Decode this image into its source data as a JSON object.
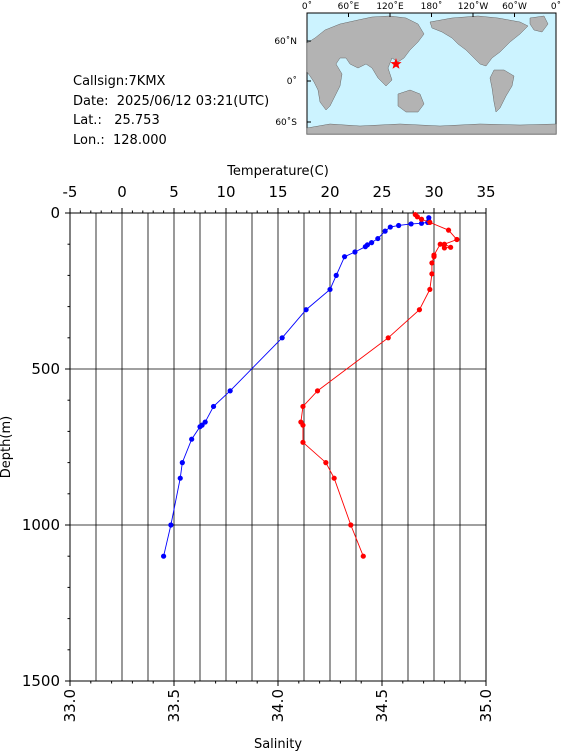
{
  "station": {
    "callsign_label": "Callsign:",
    "callsign": "7KMX",
    "date_label": "Date:",
    "date": "2025/06/12 03:21(UTC)",
    "lat_label": "Lat.:",
    "lat": "25.753",
    "lon_label": "Lon.:",
    "lon": "128.000"
  },
  "map": {
    "top_ticks": [
      "0˚",
      "60˚E",
      "120˚E",
      "180˚",
      "120˚W",
      "60˚W",
      "0˚"
    ],
    "left_ticks": [
      "60˚N",
      "0˚",
      "60˚S"
    ],
    "ocean_color": "#ccf3ff",
    "land_color": "#b3b3b3",
    "marker_color": "#ff0000",
    "marker": "star-icon"
  },
  "chart_data": {
    "type": "line",
    "title": "",
    "ylabel": "Depth(m)",
    "ylim": [
      1500,
      0
    ],
    "yticks": [
      "0",
      "500",
      "1000",
      "1500"
    ],
    "grid": true,
    "x_top": {
      "label": "Temperature(C)",
      "lim": [
        -5,
        35
      ],
      "ticks": [
        "-5",
        "0",
        "5",
        "10",
        "15",
        "20",
        "25",
        "30",
        "35"
      ]
    },
    "x_bottom": {
      "label": "Salinity",
      "lim": [
        33.0,
        35.0
      ],
      "ticks": [
        "33.0",
        "33.5",
        "34.0",
        "34.5",
        "35.0"
      ]
    },
    "series": [
      {
        "axis": "temperature",
        "color": "#0000ff",
        "points": [
          [
            29.5,
            15
          ],
          [
            29.5,
            25
          ],
          [
            29.4,
            30
          ],
          [
            28.8,
            33
          ],
          [
            27.8,
            35
          ],
          [
            26.6,
            40
          ],
          [
            25.8,
            45
          ],
          [
            25.3,
            58
          ],
          [
            24.6,
            82
          ],
          [
            24.0,
            95
          ],
          [
            23.6,
            102
          ],
          [
            23.4,
            108
          ],
          [
            22.4,
            125
          ],
          [
            21.4,
            140
          ],
          [
            20.6,
            200
          ],
          [
            20.0,
            245
          ],
          [
            17.7,
            310
          ],
          [
            15.4,
            400
          ],
          [
            10.4,
            570
          ],
          [
            8.8,
            620
          ],
          [
            8.0,
            670
          ],
          [
            7.7,
            680
          ],
          [
            7.5,
            685
          ],
          [
            6.7,
            725
          ],
          [
            5.8,
            800
          ],
          [
            5.6,
            850
          ],
          [
            4.7,
            1000
          ],
          [
            4.0,
            1100
          ]
        ]
      },
      {
        "axis": "salinity",
        "color": "#ff0000",
        "points": [
          [
            34.66,
            5
          ],
          [
            34.67,
            12
          ],
          [
            34.69,
            20
          ],
          [
            34.73,
            30
          ],
          [
            34.82,
            55
          ],
          [
            34.86,
            85
          ],
          [
            34.8,
            100
          ],
          [
            34.83,
            110
          ],
          [
            34.8,
            112
          ],
          [
            34.78,
            100
          ],
          [
            34.75,
            135
          ],
          [
            34.75,
            140
          ],
          [
            34.74,
            160
          ],
          [
            34.74,
            195
          ],
          [
            34.73,
            245
          ],
          [
            34.68,
            310
          ],
          [
            34.53,
            400
          ],
          [
            34.19,
            570
          ],
          [
            34.12,
            620
          ],
          [
            34.11,
            670
          ],
          [
            34.12,
            680
          ],
          [
            34.12,
            735
          ],
          [
            34.23,
            800
          ],
          [
            34.27,
            850
          ],
          [
            34.35,
            1000
          ],
          [
            34.41,
            1100
          ]
        ]
      }
    ]
  }
}
